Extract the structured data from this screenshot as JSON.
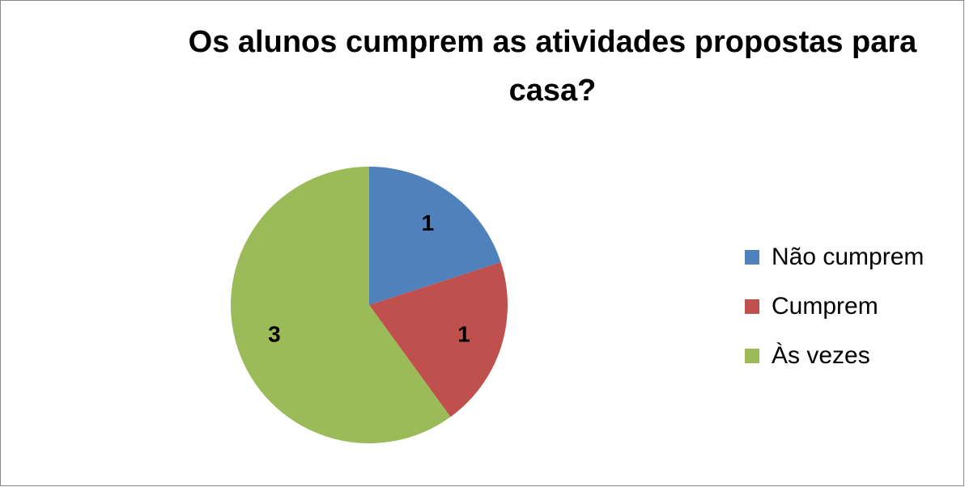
{
  "chart_data": {
    "type": "pie",
    "title": "Os alunos cumprem as atividades propostas para casa?",
    "categories": [
      "Não cumprem",
      "Cumprem",
      "Às vezes"
    ],
    "values": [
      1,
      1,
      3
    ],
    "colors": [
      "#4f81bd",
      "#c0504d",
      "#9bbb59"
    ],
    "legend": "right"
  }
}
